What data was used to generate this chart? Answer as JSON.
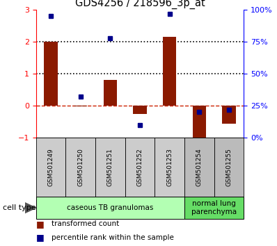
{
  "title": "GDS4256 / 218596_3p_at",
  "samples": [
    "GSM501249",
    "GSM501250",
    "GSM501251",
    "GSM501252",
    "GSM501253",
    "GSM501254",
    "GSM501255"
  ],
  "transformed_count": [
    2.0,
    -0.02,
    0.8,
    -0.25,
    2.15,
    -1.0,
    -0.55
  ],
  "percentile_rank": [
    95,
    32,
    78,
    10,
    97,
    20,
    22
  ],
  "cell_type_groups": [
    {
      "label": "caseous TB granulomas",
      "samples": [
        0,
        1,
        2,
        3,
        4
      ],
      "color": "#b3ffb3"
    },
    {
      "label": "normal lung\nparenchyma",
      "samples": [
        5,
        6
      ],
      "color": "#66dd66"
    }
  ],
  "sample_box_color": "#cccccc",
  "sample_box_color_last2": "#bbbbbb",
  "bar_color": "#8B1A00",
  "dot_color": "#00008B",
  "ylim_left": [
    -1,
    3
  ],
  "ylim_right": [
    0,
    100
  ],
  "yticks_left": [
    -1,
    0,
    1,
    2,
    3
  ],
  "yticks_right": [
    0,
    25,
    50,
    75,
    100
  ],
  "yticklabels_right": [
    "0%",
    "25%",
    "50%",
    "75%",
    "100%"
  ],
  "hlines": [
    2.0,
    1.0
  ],
  "hline_zero_color": "#cc2200",
  "hline_dotted_color": "black",
  "legend_items": [
    {
      "label": "transformed count",
      "color": "#8B1A00"
    },
    {
      "label": "percentile rank within the sample",
      "color": "#00008B"
    }
  ],
  "cell_type_label": "cell type",
  "figsize": [
    3.98,
    3.54
  ],
  "dpi": 100
}
